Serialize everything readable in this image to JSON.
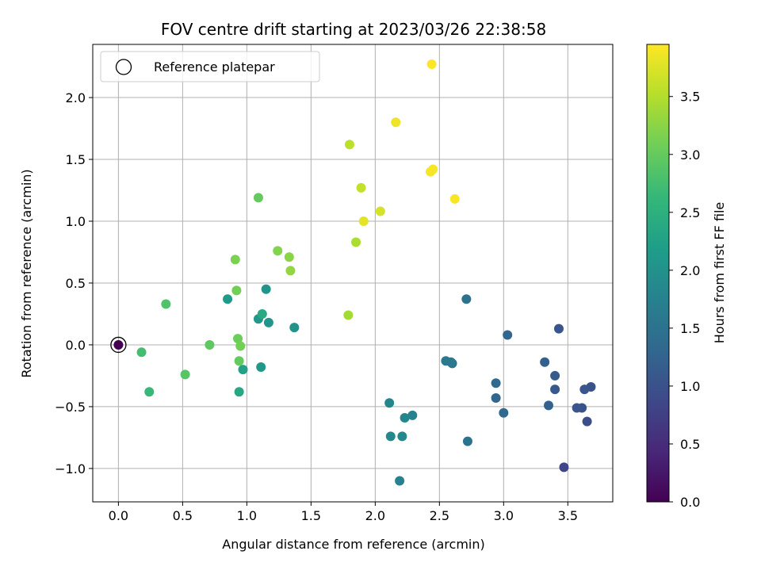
{
  "chart_data": {
    "type": "scatter",
    "title": "FOV centre drift starting at 2023/03/26 22:38:58",
    "xlabel": "Angular distance from reference (arcmin)",
    "ylabel": "Rotation from reference (arcmin)",
    "xlim": [
      -0.2,
      3.85
    ],
    "ylim": [
      -1.27,
      2.43
    ],
    "xticks": [
      0.0,
      0.5,
      1.0,
      1.5,
      2.0,
      2.5,
      3.0,
      3.5
    ],
    "xtick_labels": [
      "0.0",
      "0.5",
      "1.0",
      "1.5",
      "2.0",
      "2.5",
      "3.0",
      "3.5"
    ],
    "yticks": [
      -1.0,
      -0.5,
      0.0,
      0.5,
      1.0,
      1.5,
      2.0
    ],
    "ytick_labels": [
      "−1.0",
      "−0.5",
      "0.0",
      "0.5",
      "1.0",
      "1.5",
      "2.0"
    ],
    "grid": true,
    "legend": {
      "placement": "upper left",
      "entries": [
        "Reference platepar"
      ]
    },
    "colorbar": {
      "label": "Hours from first FF file",
      "colormap": "viridis",
      "range": [
        0.0,
        3.95
      ],
      "ticks": [
        0.0,
        0.5,
        1.0,
        1.5,
        2.0,
        2.5,
        3.0,
        3.5
      ],
      "tick_labels": [
        "0.0",
        "0.5",
        "1.0",
        "1.5",
        "2.0",
        "2.5",
        "3.0",
        "3.5"
      ]
    },
    "reference_point": {
      "x": 0.0,
      "y": 0.0,
      "hours": 0.0
    },
    "points": [
      {
        "x": 3.47,
        "y": -0.99,
        "hours": 0.85
      },
      {
        "x": 3.65,
        "y": -0.62,
        "hours": 0.95
      },
      {
        "x": 3.61,
        "y": -0.51,
        "hours": 1.0
      },
      {
        "x": 3.57,
        "y": -0.51,
        "hours": 1.05
      },
      {
        "x": 3.68,
        "y": -0.34,
        "hours": 1.0
      },
      {
        "x": 3.63,
        "y": -0.36,
        "hours": 1.05
      },
      {
        "x": 3.43,
        "y": 0.13,
        "hours": 1.05
      },
      {
        "x": 3.4,
        "y": -0.36,
        "hours": 1.1
      },
      {
        "x": 3.4,
        "y": -0.25,
        "hours": 1.15
      },
      {
        "x": 3.35,
        "y": -0.49,
        "hours": 1.25
      },
      {
        "x": 3.32,
        "y": -0.14,
        "hours": 1.2
      },
      {
        "x": 3.03,
        "y": 0.08,
        "hours": 1.3
      },
      {
        "x": 3.0,
        "y": -0.55,
        "hours": 1.35
      },
      {
        "x": 2.94,
        "y": -0.43,
        "hours": 1.3
      },
      {
        "x": 2.94,
        "y": -0.31,
        "hours": 1.35
      },
      {
        "x": 2.72,
        "y": -0.78,
        "hours": 1.5
      },
      {
        "x": 2.71,
        "y": 0.37,
        "hours": 1.5
      },
      {
        "x": 2.6,
        "y": -0.15,
        "hours": 1.5
      },
      {
        "x": 2.55,
        "y": -0.13,
        "hours": 1.6
      },
      {
        "x": 2.59,
        "y": -0.14,
        "hours": 1.6
      },
      {
        "x": 2.29,
        "y": -0.57,
        "hours": 1.75
      },
      {
        "x": 2.23,
        "y": -0.59,
        "hours": 1.8
      },
      {
        "x": 2.21,
        "y": -0.74,
        "hours": 1.85
      },
      {
        "x": 2.19,
        "y": -1.1,
        "hours": 1.75
      },
      {
        "x": 2.12,
        "y": -0.74,
        "hours": 1.85
      },
      {
        "x": 2.11,
        "y": -0.47,
        "hours": 1.8
      },
      {
        "x": 1.37,
        "y": 0.14,
        "hours": 2.0
      },
      {
        "x": 1.17,
        "y": 0.18,
        "hours": 2.05
      },
      {
        "x": 1.15,
        "y": 0.45,
        "hours": 2.05
      },
      {
        "x": 1.11,
        "y": -0.18,
        "hours": 2.1
      },
      {
        "x": 1.09,
        "y": 0.21,
        "hours": 2.1
      },
      {
        "x": 0.85,
        "y": 0.37,
        "hours": 2.15
      },
      {
        "x": 0.97,
        "y": -0.2,
        "hours": 2.25
      },
      {
        "x": 0.94,
        "y": -0.38,
        "hours": 2.35
      },
      {
        "x": 1.12,
        "y": 0.25,
        "hours": 2.4
      },
      {
        "x": 0.24,
        "y": -0.38,
        "hours": 2.65
      },
      {
        "x": 0.18,
        "y": -0.06,
        "hours": 2.75
      },
      {
        "x": 0.37,
        "y": 0.33,
        "hours": 2.85
      },
      {
        "x": 0.52,
        "y": -0.24,
        "hours": 2.9
      },
      {
        "x": 0.71,
        "y": 0.0,
        "hours": 2.95
      },
      {
        "x": 0.94,
        "y": -0.13,
        "hours": 3.0
      },
      {
        "x": 0.93,
        "y": 0.05,
        "hours": 3.05
      },
      {
        "x": 0.95,
        "y": -0.01,
        "hours": 3.1
      },
      {
        "x": 0.92,
        "y": 0.44,
        "hours": 3.1
      },
      {
        "x": 1.09,
        "y": 1.19,
        "hours": 3.0
      },
      {
        "x": 0.91,
        "y": 0.69,
        "hours": 3.15
      },
      {
        "x": 1.24,
        "y": 0.76,
        "hours": 3.2
      },
      {
        "x": 1.33,
        "y": 0.71,
        "hours": 3.25
      },
      {
        "x": 1.34,
        "y": 0.6,
        "hours": 3.3
      },
      {
        "x": 1.79,
        "y": 0.24,
        "hours": 3.4
      },
      {
        "x": 1.85,
        "y": 0.83,
        "hours": 3.45
      },
      {
        "x": 1.8,
        "y": 1.62,
        "hours": 3.55
      },
      {
        "x": 1.89,
        "y": 1.27,
        "hours": 3.6
      },
      {
        "x": 2.04,
        "y": 1.08,
        "hours": 3.7
      },
      {
        "x": 1.91,
        "y": 1.0,
        "hours": 3.8
      },
      {
        "x": 2.16,
        "y": 1.8,
        "hours": 3.85
      },
      {
        "x": 2.43,
        "y": 1.4,
        "hours": 3.9
      },
      {
        "x": 2.45,
        "y": 1.42,
        "hours": 3.9
      },
      {
        "x": 2.62,
        "y": 1.18,
        "hours": 3.92
      },
      {
        "x": 2.44,
        "y": 2.27,
        "hours": 3.95
      }
    ]
  }
}
